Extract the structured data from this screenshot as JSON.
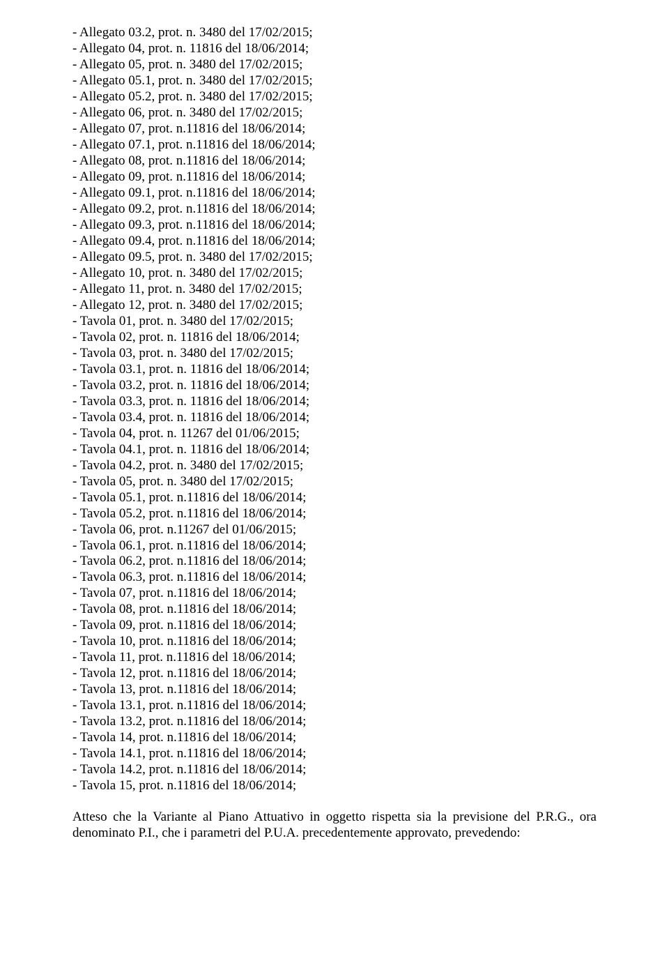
{
  "list": {
    "items": [
      "- Allegato 03.2, prot. n. 3480 del 17/02/2015;",
      "- Allegato 04, prot. n. 11816 del 18/06/2014;",
      "- Allegato 05, prot. n. 3480 del 17/02/2015;",
      "- Allegato 05.1, prot. n. 3480 del 17/02/2015;",
      "- Allegato 05.2, prot. n. 3480 del 17/02/2015;",
      "- Allegato 06, prot. n. 3480 del 17/02/2015;",
      "- Allegato 07, prot. n.11816 del 18/06/2014;",
      "- Allegato 07.1, prot. n.11816 del 18/06/2014;",
      "- Allegato 08, prot. n.11816 del 18/06/2014;",
      "- Allegato 09, prot. n.11816 del 18/06/2014;",
      "- Allegato 09.1, prot. n.11816 del 18/06/2014;",
      "- Allegato 09.2, prot. n.11816 del 18/06/2014;",
      "- Allegato 09.3, prot. n.11816 del 18/06/2014;",
      "- Allegato 09.4, prot. n.11816 del 18/06/2014;",
      "- Allegato 09.5, prot. n. 3480 del 17/02/2015;",
      "- Allegato 10, prot. n. 3480 del 17/02/2015;",
      "- Allegato 11, prot. n. 3480 del 17/02/2015;",
      "- Allegato 12, prot. n. 3480 del 17/02/2015;",
      "- Tavola 01, prot. n. 3480 del 17/02/2015;",
      "- Tavola 02, prot. n. 11816 del 18/06/2014;",
      "- Tavola 03, prot. n. 3480 del 17/02/2015;",
      "- Tavola 03.1, prot. n. 11816 del 18/06/2014;",
      "- Tavola 03.2, prot. n. 11816 del 18/06/2014;",
      "- Tavola 03.3, prot. n. 11816 del 18/06/2014;",
      "- Tavola 03.4, prot. n. 11816 del 18/06/2014;",
      "- Tavola 04, prot. n. 11267 del 01/06/2015;",
      "- Tavola 04.1, prot. n. 11816 del 18/06/2014;",
      "- Tavola 04.2, prot. n. 3480 del 17/02/2015;",
      "- Tavola 05, prot. n. 3480 del 17/02/2015;",
      "- Tavola 05.1, prot. n.11816 del 18/06/2014;",
      "- Tavola 05.2, prot. n.11816 del 18/06/2014;",
      "- Tavola 06, prot. n.11267 del 01/06/2015;",
      "- Tavola 06.1, prot. n.11816 del 18/06/2014;",
      "- Tavola 06.2, prot. n.11816 del 18/06/2014;",
      "- Tavola 06.3, prot. n.11816 del 18/06/2014;",
      "- Tavola 07, prot. n.11816 del 18/06/2014;",
      "- Tavola 08, prot. n.11816 del 18/06/2014;",
      "- Tavola 09, prot. n.11816 del 18/06/2014;",
      "- Tavola 10, prot. n.11816 del 18/06/2014;",
      "- Tavola 11, prot. n.11816 del 18/06/2014;",
      "- Tavola 12, prot. n.11816 del 18/06/2014;",
      "- Tavola 13, prot. n.11816 del 18/06/2014;",
      "- Tavola 13.1, prot. n.11816 del 18/06/2014;",
      "- Tavola 13.2, prot. n.11816 del 18/06/2014;",
      "- Tavola 14, prot. n.11816 del 18/06/2014;",
      "- Tavola 14.1, prot. n.11816 del 18/06/2014;",
      "- Tavola 14.2, prot. n.11816 del 18/06/2014;",
      "- Tavola 15, prot. n.11816 del 18/06/2014;"
    ]
  },
  "closing": {
    "text": "Atteso che la Variante al Piano Attuativo in oggetto rispetta sia la previsione del P.R.G., ora denominato P.I., che i parametri del P.U.A. precedentemente approvato, prevedendo:"
  }
}
